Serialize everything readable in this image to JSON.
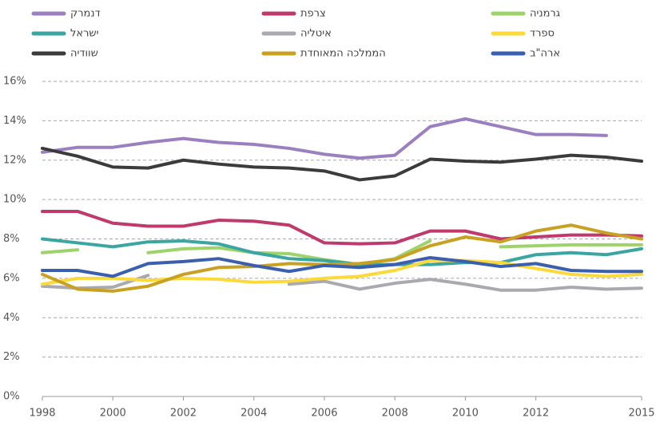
{
  "chart_data": {
    "type": "line",
    "x": [
      1998,
      1999,
      2000,
      2001,
      2002,
      2003,
      2004,
      2005,
      2006,
      2007,
      2008,
      2009,
      2010,
      2011,
      2012,
      2013,
      2014,
      2015
    ],
    "xlim": [
      1998,
      2015
    ],
    "xticks": [
      1998,
      2000,
      2002,
      2004,
      2006,
      2008,
      2010,
      2012,
      2015
    ],
    "ylim": [
      0,
      16
    ],
    "yticks": [
      {
        "value": 0,
        "label": "0%"
      },
      {
        "value": 2,
        "label": "2%"
      },
      {
        "value": 4,
        "label": "4%"
      },
      {
        "value": 6,
        "label": "6%"
      },
      {
        "value": 8,
        "label": "8%"
      },
      {
        "value": 10,
        "label": "10%"
      },
      {
        "value": 12,
        "label": "12%"
      },
      {
        "value": 14,
        "label": "14%"
      },
      {
        "value": 16,
        "label": "16%"
      }
    ],
    "grid": true,
    "series": [
      {
        "name": "דנמרק",
        "color": "#9b7fc1",
        "values": [
          12.4,
          12.65,
          12.65,
          12.9,
          13.1,
          12.9,
          12.8,
          12.6,
          12.3,
          12.1,
          12.25,
          13.7,
          14.1,
          13.7,
          13.3,
          13.3,
          13.25,
          null
        ]
      },
      {
        "name": "צרפת",
        "color": "#c0396d",
        "values": [
          9.4,
          9.4,
          8.8,
          8.65,
          8.65,
          8.95,
          8.9,
          8.7,
          7.8,
          7.75,
          7.8,
          8.4,
          8.4,
          8.0,
          8.1,
          8.2,
          8.2,
          8.15
        ]
      },
      {
        "name": "גרמניה",
        "color": "#9ed36a",
        "values": [
          7.3,
          7.45,
          null,
          7.3,
          7.5,
          7.55,
          7.3,
          7.25,
          6.95,
          6.7,
          7.0,
          7.9,
          null,
          7.6,
          7.65,
          7.7,
          7.7,
          7.7
        ]
      },
      {
        "name": "ישראל",
        "color": "#3aa6a2",
        "values": [
          8.0,
          7.8,
          7.6,
          7.85,
          7.9,
          7.75,
          7.3,
          7.0,
          6.9,
          6.7,
          6.7,
          6.7,
          6.8,
          6.8,
          7.2,
          7.3,
          7.2,
          7.5
        ]
      },
      {
        "name": "איטליה",
        "color": "#a9a9b0",
        "values": [
          5.6,
          5.5,
          5.55,
          6.15,
          null,
          null,
          null,
          5.7,
          5.85,
          5.45,
          5.75,
          5.95,
          5.7,
          5.4,
          5.4,
          5.55,
          5.45,
          5.5
        ]
      },
      {
        "name": "ספרד",
        "color": "#fcd93a",
        "values": [
          5.7,
          6.0,
          6.0,
          5.9,
          6.0,
          5.95,
          5.8,
          5.85,
          6.0,
          6.1,
          6.4,
          6.9,
          6.9,
          6.8,
          6.5,
          6.2,
          6.1,
          6.2
        ]
      },
      {
        "name": "שוודיה",
        "color": "#3b3b3b",
        "values": [
          12.6,
          12.2,
          11.65,
          11.6,
          12.0,
          11.8,
          11.65,
          11.6,
          11.45,
          11.0,
          11.2,
          12.05,
          11.95,
          11.9,
          12.05,
          12.25,
          12.15,
          11.95
        ]
      },
      {
        "name": "הממלכה המאוחדת",
        "color": "#c9a020",
        "values": [
          6.2,
          5.45,
          5.35,
          5.6,
          6.2,
          6.55,
          6.6,
          6.75,
          6.7,
          6.75,
          6.95,
          7.65,
          8.1,
          7.85,
          8.4,
          8.7,
          8.3,
          8.0
        ]
      },
      {
        "name": "ארה\"ב",
        "color": "#3a5fae",
        "values": [
          6.4,
          6.4,
          6.1,
          6.75,
          6.85,
          7.0,
          6.65,
          6.35,
          6.65,
          6.55,
          6.7,
          7.05,
          6.85,
          6.6,
          6.75,
          6.4,
          6.35,
          6.35
        ]
      }
    ]
  }
}
